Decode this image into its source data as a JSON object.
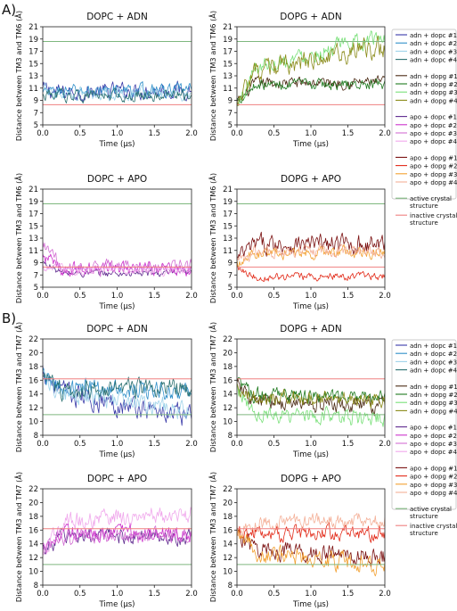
{
  "panel_labels": [
    "A)",
    "B)"
  ],
  "colors": {
    "adn_dopc": [
      "#3a3aa8",
      "#2f8fc9",
      "#9fd3ea",
      "#2a7070"
    ],
    "adn_dopg": [
      "#4b2a14",
      "#1f7a1f",
      "#78e078",
      "#8a8a18"
    ],
    "apo_dopc": [
      "#5e2a8e",
      "#cc33cc",
      "#d36fd3",
      "#f0a8ec"
    ],
    "apo_dopg": [
      "#7a1010",
      "#e22a18",
      "#f2a030",
      "#f4b098"
    ],
    "active": "#7fb87f",
    "inactive": "#ef8080"
  },
  "legend_groups": [
    {
      "entries": [
        "adn + dopc #1",
        "adn + dopc #2",
        "adn + dopc #3",
        "adn + dopc #4"
      ]
    },
    {
      "entries": [
        "adn + dopg #1",
        "adn + dopg #2",
        "adn + dopg #3",
        "adn + dopg #4"
      ]
    },
    {
      "entries": [
        "apo + dopc #1",
        "apo + dopc #2",
        "apo + dopc #3",
        "apo + dopc #4"
      ]
    },
    {
      "entries": [
        "apo + dopg #1",
        "apo + dopg #2",
        "apo + dopg #3",
        "apo + dopg #4"
      ]
    },
    {
      "entries": [
        "active crystal structure",
        "inactive crystal structure"
      ]
    }
  ],
  "chart_data": [
    {
      "type": "line",
      "panel": "A",
      "title": "DOPC + ADN",
      "xlabel": "Time (μs)",
      "ylabel": "Distance between TM3 and TM6 (Å)",
      "xlim": [
        0,
        2.0
      ],
      "ylim": [
        5,
        21
      ],
      "xticks": [
        "0.0",
        "0.5",
        "1.0",
        "1.5",
        "2.0"
      ],
      "yticks": [
        "5",
        "7",
        "9",
        "11",
        "13",
        "15",
        "17",
        "19",
        "21"
      ],
      "ref_active": 18.6,
      "ref_inactive": 8.3,
      "series": [
        {
          "name": "adn + dopc #1",
          "start": 10.8,
          "mean": 10.2,
          "end": 10.8,
          "noise": 1.1
        },
        {
          "name": "adn + dopc #2",
          "start": 10.0,
          "mean": 10.5,
          "end": 10.6,
          "noise": 0.9
        },
        {
          "name": "adn + dopc #3",
          "start": 10.5,
          "mean": 10.2,
          "end": 10.2,
          "noise": 0.9
        },
        {
          "name": "adn + dopc #4",
          "start": 9.8,
          "mean": 9.8,
          "end": 9.8,
          "noise": 0.8
        }
      ]
    },
    {
      "type": "line",
      "panel": "A",
      "title": "DOPG + ADN",
      "xlabel": "Time (μs)",
      "ylabel": "Distance between TM3 and TM6 (Å)",
      "xlim": [
        0,
        2.0
      ],
      "ylim": [
        5,
        21
      ],
      "xticks": [
        "0.0",
        "0.5",
        "1.0",
        "1.5",
        "2.0"
      ],
      "yticks": [
        "5",
        "7",
        "9",
        "11",
        "13",
        "15",
        "17",
        "19",
        "21"
      ],
      "ref_active": 18.6,
      "ref_inactive": 8.3,
      "series": [
        {
          "name": "adn + dopg #1",
          "start": 8.5,
          "mean": 11.8,
          "end": 12.0,
          "noise": 0.8
        },
        {
          "name": "adn + dopg #2",
          "start": 9.0,
          "mean": 11.6,
          "end": 11.5,
          "noise": 0.7
        },
        {
          "name": "adn + dopg #3",
          "start": 8.0,
          "mean": 14.5,
          "end": 19.5,
          "noise": 1.1
        },
        {
          "name": "adn + dopg #4",
          "start": 8.5,
          "mean": 13.5,
          "end": 18.0,
          "noise": 1.4
        }
      ]
    },
    {
      "type": "line",
      "panel": "A",
      "title": "DOPC + APO",
      "xlabel": "Time (μs)",
      "ylabel": "Distance between TM3 and TM6 (Å)",
      "xlim": [
        0,
        2.0
      ],
      "ylim": [
        5,
        21
      ],
      "xticks": [
        "0.0",
        "0.5",
        "1.0",
        "1.5",
        "2.0"
      ],
      "yticks": [
        "5",
        "7",
        "9",
        "11",
        "13",
        "15",
        "17",
        "19",
        "21"
      ],
      "ref_active": 18.6,
      "ref_inactive": 8.3,
      "series": [
        {
          "name": "apo + dopc #1",
          "start": 9.0,
          "mean": 7.3,
          "end": 7.2,
          "noise": 0.5
        },
        {
          "name": "apo + dopc #2",
          "start": 10.0,
          "mean": 8.0,
          "end": 8.0,
          "noise": 0.9
        },
        {
          "name": "apo + dopc #3",
          "start": 12.0,
          "mean": 8.3,
          "end": 8.2,
          "noise": 1.0
        },
        {
          "name": "apo + dopc #4",
          "start": 8.5,
          "mean": 7.8,
          "end": 7.8,
          "noise": 0.6
        }
      ]
    },
    {
      "type": "line",
      "panel": "A",
      "title": "DOPG + APO",
      "xlabel": "Time (μs)",
      "ylabel": "Distance between TM3 and TM6 (Å)",
      "xlim": [
        0,
        2.0
      ],
      "ylim": [
        5,
        21
      ],
      "xticks": [
        "0.0",
        "0.5",
        "1.0",
        "1.5",
        "2.0"
      ],
      "yticks": [
        "5",
        "7",
        "9",
        "11",
        "13",
        "15",
        "17",
        "19",
        "21"
      ],
      "ref_active": 18.6,
      "ref_inactive": 8.3,
      "series": [
        {
          "name": "apo + dopg #1",
          "start": 9.5,
          "mean": 12.0,
          "end": 12.0,
          "noise": 1.3
        },
        {
          "name": "apo + dopg #2",
          "start": 8.5,
          "mean": 6.6,
          "end": 6.8,
          "noise": 0.5
        },
        {
          "name": "apo + dopg #3",
          "start": 9.0,
          "mean": 10.5,
          "end": 10.8,
          "noise": 0.8
        },
        {
          "name": "apo + dopg #4",
          "start": 9.0,
          "mean": 10.8,
          "end": 10.8,
          "noise": 0.8
        }
      ]
    },
    {
      "type": "line",
      "panel": "B",
      "title": "DOPC + ADN",
      "xlabel": "Time (μs)",
      "ylabel": "Distance between TM3 and TM7 (Å)",
      "xlim": [
        0,
        2.0
      ],
      "ylim": [
        8,
        22
      ],
      "xticks": [
        "0.0",
        "0.5",
        "1.0",
        "1.5",
        "2.0"
      ],
      "yticks": [
        "8",
        "10",
        "12",
        "14",
        "16",
        "18",
        "20",
        "22"
      ],
      "ref_active": 11.0,
      "ref_inactive": 16.2,
      "series": [
        {
          "name": "adn + dopc #1",
          "start": 17.5,
          "mean": 14.2,
          "end": 10.5,
          "noise": 1.3
        },
        {
          "name": "adn + dopc #2",
          "start": 16.5,
          "mean": 15.2,
          "end": 14.2,
          "noise": 1.0
        },
        {
          "name": "adn + dopc #3",
          "start": 16.5,
          "mean": 14.2,
          "end": 11.5,
          "noise": 1.1
        },
        {
          "name": "adn + dopc #4",
          "start": 16.0,
          "mean": 14.5,
          "end": 15.0,
          "noise": 1.1
        }
      ]
    },
    {
      "type": "line",
      "panel": "B",
      "title": "DOPG + ADN",
      "xlabel": "Time (μs)",
      "ylabel": "Distance between TM3 and TM7 (Å)",
      "xlim": [
        0,
        2.0
      ],
      "ylim": [
        8,
        22
      ],
      "xticks": [
        "0.0",
        "0.5",
        "1.0",
        "1.5",
        "2.0"
      ],
      "yticks": [
        "8",
        "10",
        "12",
        "14",
        "16",
        "18",
        "20",
        "22"
      ],
      "ref_active": 11.0,
      "ref_inactive": 16.2,
      "series": [
        {
          "name": "adn + dopg #1",
          "start": 15.0,
          "mean": 12.8,
          "end": 12.2,
          "noise": 1.0
        },
        {
          "name": "adn + dopg #2",
          "start": 15.5,
          "mean": 13.8,
          "end": 13.5,
          "noise": 0.9
        },
        {
          "name": "adn + dopg #3",
          "start": 14.5,
          "mean": 11.0,
          "end": 10.5,
          "noise": 1.0
        },
        {
          "name": "adn + dopg #4",
          "start": 15.0,
          "mean": 13.5,
          "end": 13.0,
          "noise": 0.9
        }
      ]
    },
    {
      "type": "line",
      "panel": "B",
      "title": "DOPC + APO",
      "xlabel": "Time (μs)",
      "ylabel": "Distance between TM3 and TM7 (Å)",
      "xlim": [
        0,
        2.0
      ],
      "ylim": [
        8,
        22
      ],
      "xticks": [
        "0.0",
        "0.5",
        "1.0",
        "1.5",
        "2.0"
      ],
      "yticks": [
        "8",
        "10",
        "12",
        "14",
        "16",
        "18",
        "20",
        "22"
      ],
      "ref_active": 11.0,
      "ref_inactive": 16.2,
      "series": [
        {
          "name": "apo + dopc #1",
          "start": 13.0,
          "mean": 15.2,
          "end": 15.0,
          "noise": 0.9
        },
        {
          "name": "apo + dopc #2",
          "start": 13.5,
          "mean": 15.8,
          "end": 15.5,
          "noise": 0.9
        },
        {
          "name": "apo + dopc #3",
          "start": 13.0,
          "mean": 15.0,
          "end": 15.0,
          "noise": 0.9
        },
        {
          "name": "apo + dopc #4",
          "start": 12.5,
          "mean": 17.2,
          "end": 18.5,
          "noise": 1.1
        }
      ]
    },
    {
      "type": "line",
      "panel": "B",
      "title": "DOPG + APO",
      "xlabel": "Time (μs)",
      "ylabel": "Distance between TM3 and TM7 (Å)",
      "xlim": [
        0,
        2.0
      ],
      "ylim": [
        8,
        22
      ],
      "xticks": [
        "0.0",
        "0.5",
        "1.0",
        "1.5",
        "2.0"
      ],
      "yticks": [
        "8",
        "10",
        "12",
        "14",
        "16",
        "18",
        "20",
        "22"
      ],
      "ref_active": 11.0,
      "ref_inactive": 16.2,
      "series": [
        {
          "name": "apo + dopg #1",
          "start": 15.5,
          "mean": 13.2,
          "end": 12.0,
          "noise": 1.1
        },
        {
          "name": "apo + dopg #2",
          "start": 15.5,
          "mean": 15.5,
          "end": 15.5,
          "noise": 0.9
        },
        {
          "name": "apo + dopg #3",
          "start": 15.5,
          "mean": 12.5,
          "end": 11.0,
          "noise": 1.1
        },
        {
          "name": "apo + dopg #4",
          "start": 16.0,
          "mean": 17.0,
          "end": 17.5,
          "noise": 0.9
        }
      ]
    }
  ]
}
